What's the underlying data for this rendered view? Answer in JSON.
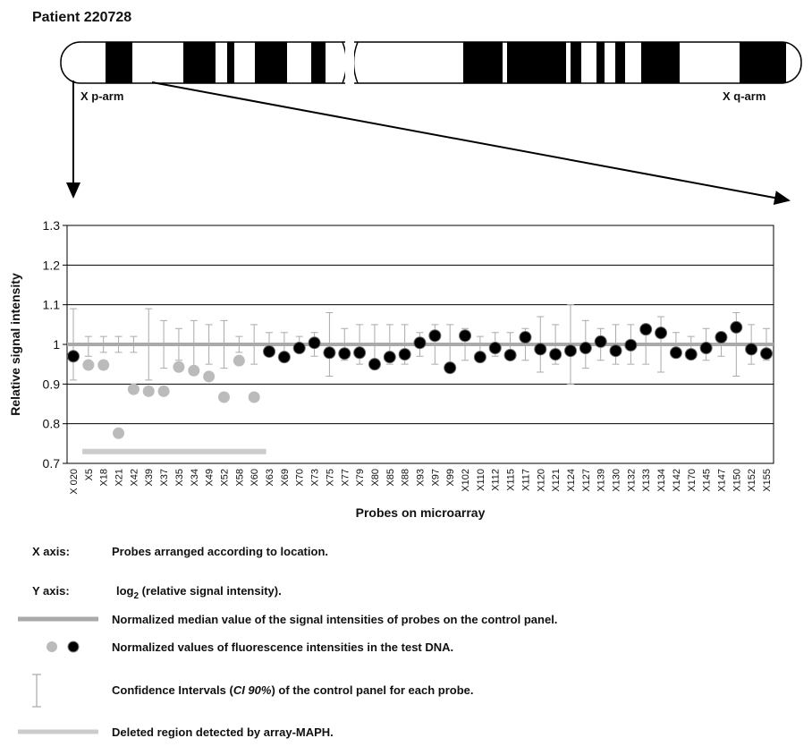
{
  "title": "Patient 220728",
  "p_arm": "X p-arm",
  "q_arm": "X q-arm",
  "chart_data": {
    "type": "scatter",
    "y_label": "Relative signal intensity",
    "x_label": "Probes on microarray",
    "categories": [
      "X 020",
      "X5",
      "X18",
      "X21",
      "X42",
      "X39",
      "X37",
      "X35",
      "X34",
      "X49",
      "X52",
      "X58",
      "X60",
      "X63",
      "X69",
      "X70",
      "X73",
      "X75",
      "X77",
      "X79",
      "X80",
      "X85",
      "X88",
      "X93",
      "X97",
      "X99",
      "X102",
      "X110",
      "X112",
      "X115",
      "X117",
      "X120",
      "X121",
      "X124",
      "X127",
      "X139",
      "X130",
      "X132",
      "X133",
      "X134",
      "X142",
      "X170",
      "X145",
      "X147",
      "X150",
      "X152",
      "X155"
    ],
    "values": [
      0.97,
      0.948,
      0.948,
      0.776,
      0.887,
      0.882,
      0.882,
      0.943,
      0.934,
      0.919,
      0.867,
      0.959,
      0.867,
      0.982,
      0.968,
      0.991,
      1.004,
      0.979,
      0.977,
      0.979,
      0.95,
      0.968,
      0.975,
      1.004,
      1.022,
      0.941,
      1.022,
      0.968,
      0.991,
      0.973,
      1.018,
      0.988,
      0.975,
      0.984,
      0.991,
      1.007,
      0.984,
      0.998,
      1.038,
      1.029,
      0.979,
      0.975,
      0.991,
      1.018,
      1.043,
      0.988,
      0.977
    ],
    "colors": [
      "#000",
      "#bbb",
      "#bbb",
      "#bbb",
      "#bbb",
      "#bbb",
      "#bbb",
      "#bbb",
      "#bbb",
      "#bbb",
      "#bbb",
      "#bbb",
      "#bbb",
      "#000",
      "#000",
      "#000",
      "#000",
      "#000",
      "#000",
      "#000",
      "#000",
      "#000",
      "#000",
      "#000",
      "#000",
      "#000",
      "#000",
      "#000",
      "#000",
      "#000",
      "#000",
      "#000",
      "#000",
      "#000",
      "#000",
      "#000",
      "#000",
      "#000",
      "#000",
      "#000",
      "#000",
      "#000",
      "#000",
      "#000",
      "#000",
      "#000",
      "#000"
    ],
    "ci_high": [
      1.09,
      1.02,
      1.02,
      1.02,
      1.02,
      1.09,
      1.06,
      1.04,
      1.06,
      1.05,
      1.06,
      1.02,
      1.05,
      1.03,
      1.03,
      1.02,
      1.03,
      1.08,
      1.04,
      1.05,
      1.05,
      1.05,
      1.05,
      1.03,
      1.05,
      1.05,
      1.04,
      1.02,
      1.03,
      1.03,
      1.04,
      1.07,
      1.05,
      1.1,
      1.06,
      1.04,
      1.05,
      1.05,
      1.05,
      1.07,
      1.03,
      1.02,
      1.04,
      1.03,
      1.08,
      1.05,
      1.04
    ],
    "ci_low": [
      0.91,
      0.97,
      0.98,
      0.98,
      0.98,
      0.91,
      0.94,
      0.96,
      0.94,
      0.95,
      0.94,
      0.98,
      0.95,
      0.97,
      0.97,
      0.98,
      0.97,
      0.92,
      0.96,
      0.95,
      0.95,
      0.95,
      0.95,
      0.97,
      0.95,
      0.95,
      0.96,
      0.98,
      0.97,
      0.97,
      0.96,
      0.93,
      0.95,
      0.9,
      0.94,
      0.96,
      0.95,
      0.95,
      0.95,
      0.93,
      0.97,
      0.98,
      0.96,
      0.97,
      0.92,
      0.95,
      0.96
    ],
    "median": 1,
    "deleted_region": {
      "y": 0.73,
      "x": [
        0.6,
        12.8
      ]
    },
    "ylim": [
      0.7,
      1.3
    ],
    "yticks": [
      0.7,
      0.8,
      0.9,
      1,
      1.1,
      1.2,
      1.3
    ],
    "grid": true
  },
  "legend": {
    "x_axis_key": "X axis:",
    "x_axis_text": "Probes arranged according to location.",
    "y_axis_key": "Y axis:",
    "y_axis_log": "log",
    "y_axis_sub": "2",
    "y_axis_rest": " (relative signal intensity).",
    "median_text": "Normalized median value of the signal intensities of probes on the control panel.",
    "points_text": "Normalized values of fluorescence intensities in the test DNA.",
    "ci_pre": "Confidence Intervals (",
    "ci_italic": "CI 90%",
    "ci_post": ") of the control panel for each probe.",
    "deleted_text": "Deleted region detected by array-MAPH."
  }
}
